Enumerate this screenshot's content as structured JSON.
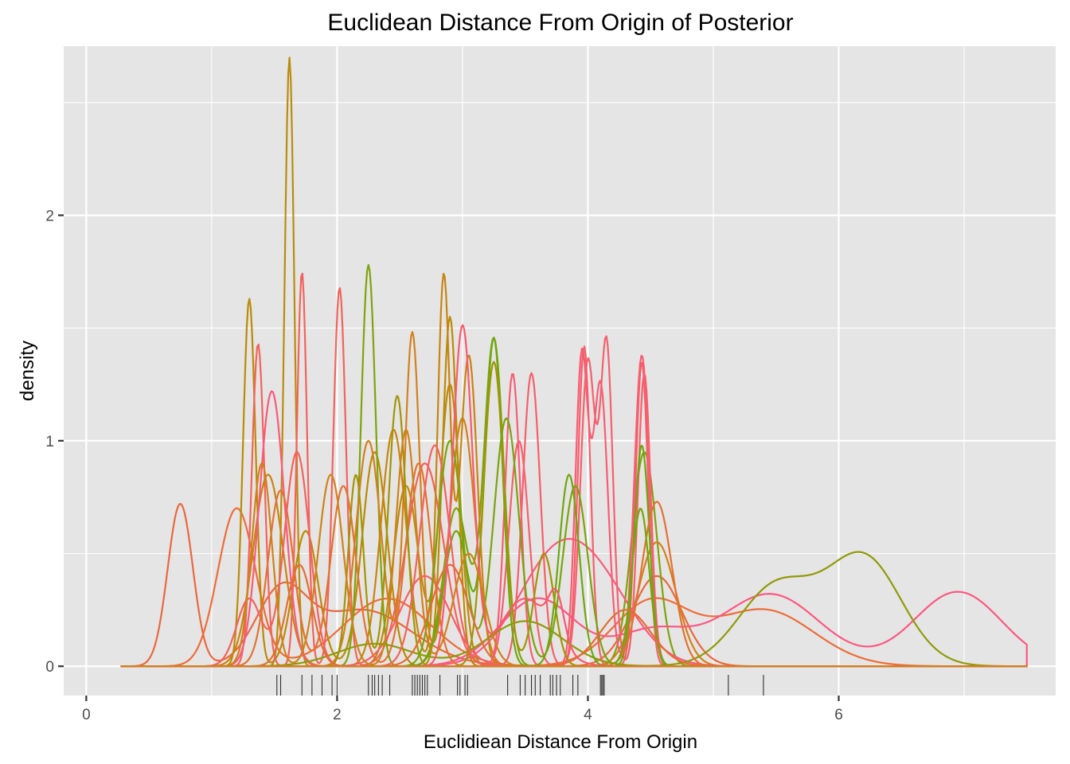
{
  "chart_data": {
    "type": "line",
    "title": "Euclidean Distance From Origin of Posterior",
    "xlabel": "Euclidiean Distance From Origin",
    "ylabel": "density",
    "xlim": [
      -0.18,
      7.73
    ],
    "ylim": [
      -0.13,
      2.75
    ],
    "x_ticks": [
      0,
      2,
      4,
      6
    ],
    "x_tick_labels": [
      "0",
      "2",
      "4",
      "6"
    ],
    "y_ticks": [
      0,
      1,
      2
    ],
    "y_tick_labels": [
      "0",
      "1",
      "2"
    ],
    "grid": true,
    "legend": "none",
    "panel_background": "#e5e5e5",
    "grid_color": "#ffffff",
    "rug_color": "#000000",
    "density_range": [
      0.28,
      7.5
    ],
    "rug": [
      1.52,
      1.55,
      1.72,
      1.8,
      1.88,
      1.96,
      2.0,
      2.25,
      2.28,
      2.3,
      2.33,
      2.36,
      2.42,
      2.6,
      2.62,
      2.64,
      2.66,
      2.68,
      2.7,
      2.72,
      2.82,
      2.96,
      2.98,
      3.02,
      3.04,
      3.36,
      3.46,
      3.5,
      3.55,
      3.58,
      3.62,
      3.7,
      3.72,
      3.75,
      3.78,
      3.88,
      3.92,
      4.1,
      4.11,
      4.12,
      4.13,
      5.12,
      5.4
    ],
    "series": [
      {
        "color": "#e8683f",
        "values": [
          [
            0.75,
            0.1,
            0.72
          ],
          [
            1.55,
            0.2,
            0.3
          ],
          [
            2.2,
            0.4,
            0.25
          ],
          [
            4.55,
            0.2,
            0.4
          ]
        ]
      },
      {
        "color": "#ed6c3a",
        "values": [
          [
            1.2,
            0.15,
            0.7
          ],
          [
            2.4,
            0.35,
            0.3
          ],
          [
            4.5,
            0.3,
            0.28
          ],
          [
            5.4,
            0.4,
            0.25
          ]
        ]
      },
      {
        "color": "#bb8a05",
        "values": [
          [
            1.3,
            0.05,
            1.63
          ],
          [
            1.75,
            0.1,
            0.6
          ],
          [
            2.3,
            0.1,
            0.95
          ],
          [
            2.9,
            0.06,
            1.55
          ]
        ]
      },
      {
        "color": "#b98c0c",
        "values": [
          [
            1.62,
            0.04,
            2.7
          ],
          [
            2.55,
            0.1,
            0.8
          ],
          [
            2.9,
            0.08,
            1.25
          ]
        ]
      },
      {
        "color": "#f2635c",
        "values": [
          [
            1.37,
            0.05,
            1.43
          ],
          [
            1.72,
            0.04,
            1.75
          ],
          [
            2.02,
            0.05,
            1.68
          ],
          [
            2.7,
            0.15,
            0.9
          ]
        ]
      },
      {
        "color": "#7fa20c",
        "values": [
          [
            2.25,
            0.06,
            1.78
          ],
          [
            2.95,
            0.1,
            0.7
          ],
          [
            3.25,
            0.08,
            1.45
          ],
          [
            4.45,
            0.1,
            0.95
          ]
        ]
      },
      {
        "color": "#d3801c",
        "values": [
          [
            2.6,
            0.06,
            1.48
          ],
          [
            2.25,
            0.1,
            1.0
          ],
          [
            3.0,
            0.1,
            1.1
          ],
          [
            4.55,
            0.15,
            0.55
          ]
        ]
      },
      {
        "color": "#c88411",
        "values": [
          [
            2.85,
            0.05,
            1.72
          ],
          [
            2.45,
            0.1,
            1.05
          ],
          [
            3.05,
            0.07,
            1.38
          ],
          [
            1.45,
            0.12,
            0.85
          ]
        ]
      },
      {
        "color": "#f95a7c",
        "values": [
          [
            1.48,
            0.1,
            1.22
          ],
          [
            3.7,
            0.3,
            0.4
          ],
          [
            4.1,
            0.3,
            0.3
          ]
        ]
      },
      {
        "color": "#f5606d",
        "values": [
          [
            4.0,
            0.06,
            1.35
          ],
          [
            4.15,
            0.05,
            1.4
          ],
          [
            4.45,
            0.05,
            1.3
          ],
          [
            3.45,
            0.08,
            1.0
          ]
        ]
      },
      {
        "color": "#f85d73",
        "values": [
          [
            3.95,
            0.05,
            1.35
          ],
          [
            4.1,
            0.06,
            1.25
          ],
          [
            4.43,
            0.06,
            1.38
          ],
          [
            3.4,
            0.06,
            1.3
          ]
        ]
      },
      {
        "color": "#f65f6a",
        "values": [
          [
            3.55,
            0.07,
            1.3
          ],
          [
            3.97,
            0.05,
            1.42
          ],
          [
            4.43,
            0.05,
            1.35
          ],
          [
            2.7,
            0.2,
            0.4
          ]
        ]
      },
      {
        "color": "#fb5883",
        "values": [
          [
            5.45,
            0.4,
            0.32
          ],
          [
            6.95,
            0.35,
            0.33
          ],
          [
            3.6,
            0.3,
            0.3
          ],
          [
            4.5,
            0.3,
            0.15
          ]
        ]
      },
      {
        "color": "#8f9a08",
        "values": [
          [
            5.5,
            0.3,
            0.35
          ],
          [
            6.2,
            0.3,
            0.48
          ],
          [
            3.5,
            0.3,
            0.2
          ],
          [
            2.3,
            0.3,
            0.1
          ]
        ]
      },
      {
        "color": "#6da70f",
        "values": [
          [
            3.25,
            0.07,
            1.45
          ],
          [
            3.85,
            0.08,
            0.85
          ],
          [
            4.43,
            0.06,
            0.98
          ],
          [
            2.95,
            0.1,
            0.6
          ]
        ]
      },
      {
        "color": "#e27230",
        "values": [
          [
            1.55,
            0.1,
            0.78
          ],
          [
            2.05,
            0.1,
            0.8
          ],
          [
            2.65,
            0.1,
            0.9
          ],
          [
            4.55,
            0.12,
            0.73
          ]
        ]
      },
      {
        "color": "#a29406",
        "values": [
          [
            2.15,
            0.06,
            0.85
          ],
          [
            2.48,
            0.07,
            1.2
          ],
          [
            3.25,
            0.08,
            1.35
          ],
          [
            3.65,
            0.08,
            0.5
          ]
        ]
      },
      {
        "color": "#f3625e",
        "values": [
          [
            1.68,
            0.1,
            0.95
          ],
          [
            2.78,
            0.12,
            0.98
          ],
          [
            1.3,
            0.1,
            0.3
          ]
        ]
      },
      {
        "color": "#7aa30d",
        "values": [
          [
            2.9,
            0.1,
            1.0
          ],
          [
            3.35,
            0.1,
            1.1
          ],
          [
            3.9,
            0.1,
            0.8
          ],
          [
            4.42,
            0.07,
            0.7
          ]
        ]
      },
      {
        "color": "#e36e34",
        "values": [
          [
            1.7,
            0.1,
            0.45
          ],
          [
            2.9,
            0.15,
            0.45
          ],
          [
            4.3,
            0.2,
            0.25
          ]
        ]
      },
      {
        "color": "#f9596f",
        "values": [
          [
            3.0,
            0.08,
            1.5
          ],
          [
            3.5,
            0.2,
            0.3
          ],
          [
            3.75,
            0.06,
            0.2
          ]
        ]
      },
      {
        "color": "#cf821a",
        "values": [
          [
            1.4,
            0.08,
            0.9
          ],
          [
            1.95,
            0.1,
            0.85
          ],
          [
            2.55,
            0.08,
            1.05
          ],
          [
            3.05,
            0.12,
            0.5
          ]
        ]
      }
    ]
  }
}
